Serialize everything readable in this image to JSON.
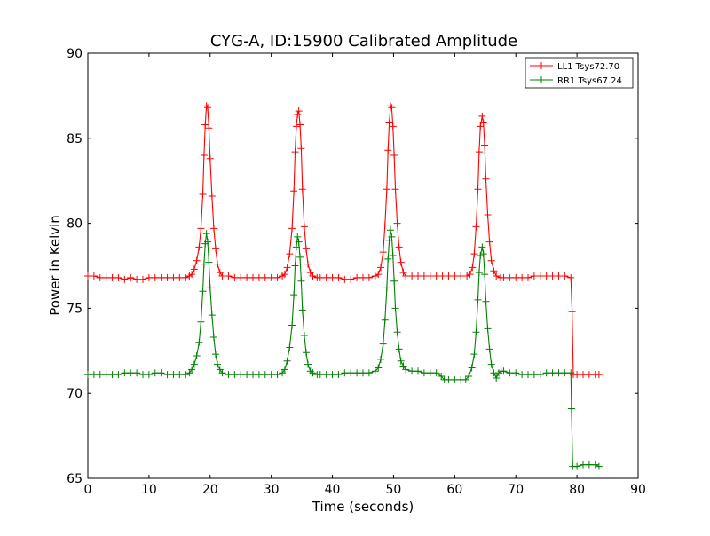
{
  "chart_data": {
    "type": "line",
    "title": "CYG-A, ID:15900 Calibrated Amplitude",
    "xlabel": "Time (seconds)",
    "ylabel": "Power in Kelvin",
    "xlim": [
      0,
      90
    ],
    "ylim": [
      65,
      90
    ],
    "xticks": [
      0,
      10,
      20,
      30,
      40,
      50,
      60,
      70,
      80,
      90
    ],
    "yticks": [
      65,
      70,
      75,
      80,
      85,
      90
    ],
    "grid": false,
    "legend_position": "top-right",
    "marker": "plus",
    "series": [
      {
        "name": "LL1 Tsys72.70",
        "color": "#ff0000",
        "points": [
          [
            0.0,
            76.9
          ],
          [
            1.0,
            76.9
          ],
          [
            2.0,
            76.8
          ],
          [
            3.0,
            76.8
          ],
          [
            4.0,
            76.8
          ],
          [
            5.0,
            76.8
          ],
          [
            6.0,
            76.7
          ],
          [
            7.0,
            76.8
          ],
          [
            8.0,
            76.7
          ],
          [
            9.0,
            76.7
          ],
          [
            10.0,
            76.8
          ],
          [
            11.0,
            76.8
          ],
          [
            12.0,
            76.8
          ],
          [
            13.0,
            76.8
          ],
          [
            14.0,
            76.8
          ],
          [
            15.0,
            76.8
          ],
          [
            16.0,
            76.8
          ],
          [
            16.6,
            76.9
          ],
          [
            17.0,
            77.0
          ],
          [
            17.4,
            77.3
          ],
          [
            17.8,
            77.8
          ],
          [
            18.2,
            78.6
          ],
          [
            18.5,
            79.7
          ],
          [
            18.8,
            81.7
          ],
          [
            19.0,
            84.0
          ],
          [
            19.2,
            85.8
          ],
          [
            19.4,
            86.9
          ],
          [
            19.6,
            86.8
          ],
          [
            19.8,
            85.6
          ],
          [
            20.0,
            83.8
          ],
          [
            20.3,
            81.6
          ],
          [
            20.6,
            79.7
          ],
          [
            20.9,
            78.5
          ],
          [
            21.2,
            77.6
          ],
          [
            21.6,
            77.1
          ],
          [
            22.0,
            76.9
          ],
          [
            23.0,
            76.9
          ],
          [
            24.0,
            76.8
          ],
          [
            25.0,
            76.8
          ],
          [
            26.0,
            76.8
          ],
          [
            27.0,
            76.8
          ],
          [
            28.0,
            76.8
          ],
          [
            29.0,
            76.8
          ],
          [
            30.0,
            76.8
          ],
          [
            31.0,
            76.8
          ],
          [
            31.8,
            76.9
          ],
          [
            32.2,
            77.0
          ],
          [
            32.6,
            77.4
          ],
          [
            33.0,
            78.2
          ],
          [
            33.4,
            79.7
          ],
          [
            33.7,
            81.9
          ],
          [
            33.9,
            84.2
          ],
          [
            34.1,
            85.7
          ],
          [
            34.3,
            86.4
          ],
          [
            34.5,
            86.6
          ],
          [
            34.7,
            85.8
          ],
          [
            34.9,
            84.4
          ],
          [
            35.1,
            82.0
          ],
          [
            35.4,
            79.8
          ],
          [
            35.7,
            78.5
          ],
          [
            36.0,
            77.6
          ],
          [
            36.4,
            77.1
          ],
          [
            36.8,
            76.9
          ],
          [
            37.5,
            76.8
          ],
          [
            38.0,
            76.8
          ],
          [
            39.0,
            76.8
          ],
          [
            40.0,
            76.8
          ],
          [
            41.0,
            76.8
          ],
          [
            42.0,
            76.7
          ],
          [
            43.0,
            76.7
          ],
          [
            44.0,
            76.8
          ],
          [
            45.0,
            76.8
          ],
          [
            46.0,
            76.8
          ],
          [
            47.0,
            76.9
          ],
          [
            47.5,
            77.0
          ],
          [
            47.9,
            77.4
          ],
          [
            48.3,
            78.3
          ],
          [
            48.6,
            79.9
          ],
          [
            48.9,
            82.0
          ],
          [
            49.1,
            84.3
          ],
          [
            49.3,
            85.9
          ],
          [
            49.5,
            86.9
          ],
          [
            49.7,
            86.8
          ],
          [
            49.9,
            85.7
          ],
          [
            50.1,
            84.0
          ],
          [
            50.3,
            82.0
          ],
          [
            50.6,
            80.0
          ],
          [
            50.9,
            78.6
          ],
          [
            51.2,
            77.7
          ],
          [
            51.6,
            77.1
          ],
          [
            52.0,
            76.9
          ],
          [
            53.0,
            76.9
          ],
          [
            54.0,
            76.9
          ],
          [
            55.0,
            76.9
          ],
          [
            56.0,
            76.9
          ],
          [
            57.0,
            76.9
          ],
          [
            58.0,
            76.9
          ],
          [
            59.0,
            76.9
          ],
          [
            60.0,
            76.9
          ],
          [
            61.0,
            76.9
          ],
          [
            62.0,
            76.9
          ],
          [
            62.5,
            77.0
          ],
          [
            62.9,
            77.4
          ],
          [
            63.2,
            78.2
          ],
          [
            63.5,
            79.8
          ],
          [
            63.8,
            82.0
          ],
          [
            64.0,
            84.2
          ],
          [
            64.2,
            85.7
          ],
          [
            64.5,
            86.3
          ],
          [
            64.7,
            85.9
          ],
          [
            64.9,
            84.6
          ],
          [
            65.1,
            82.6
          ],
          [
            65.4,
            80.5
          ],
          [
            65.7,
            78.9
          ],
          [
            66.0,
            77.8
          ],
          [
            66.4,
            77.2
          ],
          [
            66.8,
            76.9
          ],
          [
            67.5,
            76.8
          ],
          [
            68.0,
            76.8
          ],
          [
            69.0,
            76.8
          ],
          [
            70.0,
            76.8
          ],
          [
            71.0,
            76.8
          ],
          [
            72.0,
            76.8
          ],
          [
            73.0,
            76.9
          ],
          [
            74.0,
            76.9
          ],
          [
            75.0,
            76.9
          ],
          [
            76.0,
            76.9
          ],
          [
            77.0,
            76.9
          ],
          [
            78.0,
            76.9
          ],
          [
            79.0,
            76.8
          ],
          [
            79.2,
            74.8
          ],
          [
            79.4,
            71.1
          ],
          [
            80.0,
            71.1
          ],
          [
            81.0,
            71.1
          ],
          [
            82.0,
            71.1
          ],
          [
            83.0,
            71.1
          ],
          [
            83.6,
            71.1
          ]
        ]
      },
      {
        "name": "RR1 Tsys67.24",
        "color": "#008000",
        "points": [
          [
            0.0,
            71.1
          ],
          [
            1.0,
            71.1
          ],
          [
            2.0,
            71.1
          ],
          [
            3.0,
            71.1
          ],
          [
            4.0,
            71.1
          ],
          [
            5.0,
            71.1
          ],
          [
            6.0,
            71.2
          ],
          [
            7.0,
            71.2
          ],
          [
            8.0,
            71.2
          ],
          [
            9.0,
            71.1
          ],
          [
            10.0,
            71.1
          ],
          [
            11.0,
            71.2
          ],
          [
            12.0,
            71.2
          ],
          [
            13.0,
            71.1
          ],
          [
            14.0,
            71.1
          ],
          [
            15.0,
            71.1
          ],
          [
            16.0,
            71.1
          ],
          [
            16.6,
            71.2
          ],
          [
            17.0,
            71.4
          ],
          [
            17.4,
            71.7
          ],
          [
            17.8,
            72.2
          ],
          [
            18.2,
            73.0
          ],
          [
            18.5,
            74.2
          ],
          [
            18.8,
            76.0
          ],
          [
            19.0,
            77.6
          ],
          [
            19.2,
            78.8
          ],
          [
            19.4,
            79.4
          ],
          [
            19.6,
            78.9
          ],
          [
            19.8,
            77.7
          ],
          [
            20.0,
            76.2
          ],
          [
            20.3,
            74.6
          ],
          [
            20.6,
            73.3
          ],
          [
            20.9,
            72.3
          ],
          [
            21.2,
            71.7
          ],
          [
            21.6,
            71.4
          ],
          [
            22.0,
            71.2
          ],
          [
            23.0,
            71.1
          ],
          [
            24.0,
            71.1
          ],
          [
            25.0,
            71.1
          ],
          [
            26.0,
            71.1
          ],
          [
            27.0,
            71.1
          ],
          [
            28.0,
            71.1
          ],
          [
            29.0,
            71.1
          ],
          [
            30.0,
            71.1
          ],
          [
            31.0,
            71.1
          ],
          [
            31.8,
            71.2
          ],
          [
            32.2,
            71.4
          ],
          [
            32.6,
            71.9
          ],
          [
            33.0,
            72.7
          ],
          [
            33.4,
            74.0
          ],
          [
            33.7,
            75.8
          ],
          [
            33.9,
            77.5
          ],
          [
            34.1,
            78.6
          ],
          [
            34.3,
            79.2
          ],
          [
            34.5,
            78.9
          ],
          [
            34.7,
            78.0
          ],
          [
            34.9,
            76.6
          ],
          [
            35.1,
            74.9
          ],
          [
            35.4,
            73.4
          ],
          [
            35.7,
            72.4
          ],
          [
            36.0,
            71.7
          ],
          [
            36.4,
            71.3
          ],
          [
            36.8,
            71.2
          ],
          [
            37.5,
            71.1
          ],
          [
            38.0,
            71.1
          ],
          [
            39.0,
            71.1
          ],
          [
            40.0,
            71.1
          ],
          [
            41.0,
            71.1
          ],
          [
            42.0,
            71.2
          ],
          [
            43.0,
            71.2
          ],
          [
            44.0,
            71.2
          ],
          [
            45.0,
            71.2
          ],
          [
            46.0,
            71.2
          ],
          [
            47.0,
            71.3
          ],
          [
            47.5,
            71.5
          ],
          [
            47.9,
            72.0
          ],
          [
            48.3,
            72.9
          ],
          [
            48.6,
            74.3
          ],
          [
            48.9,
            76.2
          ],
          [
            49.1,
            77.9
          ],
          [
            49.3,
            79.0
          ],
          [
            49.5,
            79.6
          ],
          [
            49.7,
            79.2
          ],
          [
            49.9,
            78.1
          ],
          [
            50.1,
            76.6
          ],
          [
            50.3,
            75.0
          ],
          [
            50.6,
            73.6
          ],
          [
            50.9,
            72.6
          ],
          [
            51.2,
            71.9
          ],
          [
            51.6,
            71.6
          ],
          [
            52.0,
            71.4
          ],
          [
            53.0,
            71.3
          ],
          [
            54.0,
            71.3
          ],
          [
            55.0,
            71.2
          ],
          [
            56.0,
            71.2
          ],
          [
            57.0,
            71.2
          ],
          [
            57.8,
            71.0
          ],
          [
            58.3,
            70.8
          ],
          [
            59.0,
            70.8
          ],
          [
            60.0,
            70.8
          ],
          [
            61.0,
            70.8
          ],
          [
            61.8,
            70.8
          ],
          [
            62.3,
            71.0
          ],
          [
            62.8,
            71.5
          ],
          [
            63.2,
            72.3
          ],
          [
            63.5,
            73.6
          ],
          [
            63.8,
            75.5
          ],
          [
            64.0,
            77.1
          ],
          [
            64.2,
            78.1
          ],
          [
            64.5,
            78.6
          ],
          [
            64.7,
            78.2
          ],
          [
            64.9,
            77.0
          ],
          [
            65.1,
            75.4
          ],
          [
            65.4,
            73.8
          ],
          [
            65.7,
            72.6
          ],
          [
            66.0,
            71.7
          ],
          [
            66.4,
            71.2
          ],
          [
            66.8,
            70.9
          ],
          [
            67.2,
            71.2
          ],
          [
            67.6,
            71.3
          ],
          [
            68.0,
            71.3
          ],
          [
            69.0,
            71.2
          ],
          [
            70.0,
            71.2
          ],
          [
            71.0,
            71.1
          ],
          [
            72.0,
            71.1
          ],
          [
            73.0,
            71.1
          ],
          [
            74.0,
            71.1
          ],
          [
            75.0,
            71.2
          ],
          [
            76.0,
            71.2
          ],
          [
            77.0,
            71.2
          ],
          [
            78.0,
            71.2
          ],
          [
            79.0,
            71.2
          ],
          [
            79.1,
            69.1
          ],
          [
            79.3,
            65.7
          ],
          [
            80.0,
            65.7
          ],
          [
            81.0,
            65.8
          ],
          [
            82.0,
            65.8
          ],
          [
            83.0,
            65.8
          ],
          [
            83.6,
            65.7
          ]
        ]
      }
    ]
  }
}
